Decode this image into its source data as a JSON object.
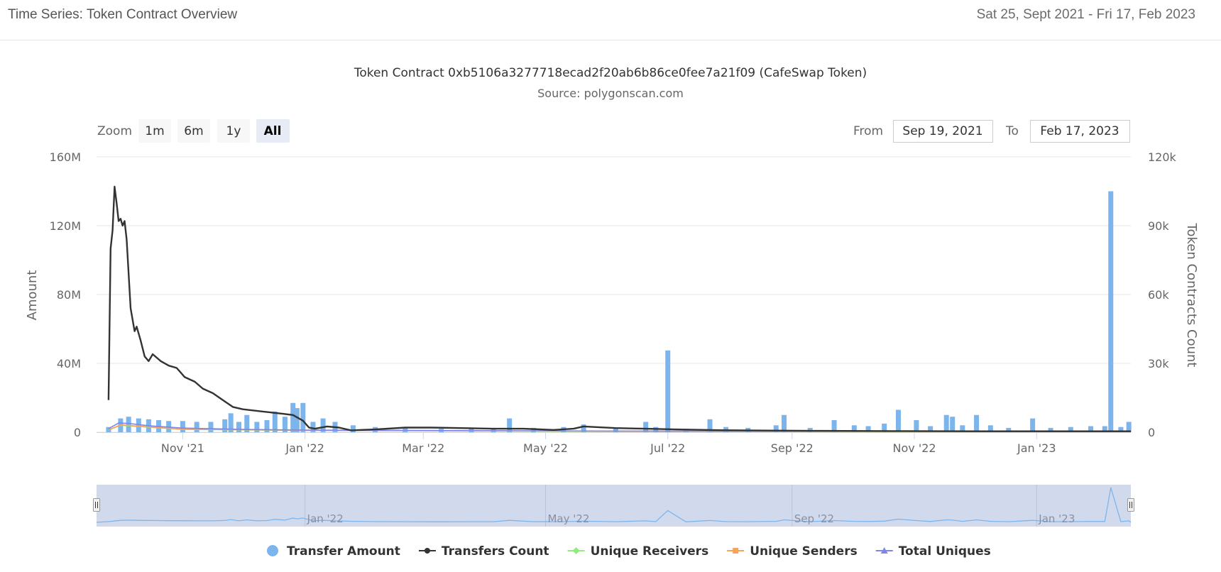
{
  "header": {
    "title": "Time Series: Token Contract Overview",
    "date_range": "Sat 25, Sept 2021 - Fri 17, Feb 2023"
  },
  "chart_data": {
    "type": "bar",
    "title": "Token Contract 0xb5106a3277718ecad2f20ab6b86ce0fee7a21f09 (CafeSwap Token)",
    "subtitle": "Source: polygonscan.com",
    "ylabel": "Amount",
    "y2label": "Token Contracts Count",
    "ylim": [
      0,
      160000000
    ],
    "y2lim": [
      0,
      120000
    ],
    "y_ticks": [
      "0",
      "40M",
      "80M",
      "120M",
      "160M"
    ],
    "y2_ticks": [
      "0",
      "30k",
      "60k",
      "90k",
      "120k"
    ],
    "x_ticks": [
      "Nov '21",
      "Jan '22",
      "Mar '22",
      "May '22",
      "Jul '22",
      "Sep '22",
      "Nov '22",
      "Jan '23"
    ],
    "x_tick_dates": [
      "2021-11-01",
      "2022-01-01",
      "2022-03-01",
      "2022-05-01",
      "2022-07-01",
      "2022-09-01",
      "2022-11-01",
      "2023-01-01"
    ],
    "x_range": [
      "2021-09-19",
      "2023-02-17"
    ],
    "grid": true,
    "legend_position": "bottom",
    "series": [
      {
        "name": "Transfer Amount",
        "type": "bar",
        "axis": "left",
        "color": "#7cb5ec",
        "points": [
          [
            "2021-09-25",
            3000000
          ],
          [
            "2021-10-01",
            8000000
          ],
          [
            "2021-10-05",
            9000000
          ],
          [
            "2021-10-10",
            8000000
          ],
          [
            "2021-10-15",
            7500000
          ],
          [
            "2021-10-20",
            7000000
          ],
          [
            "2021-10-25",
            6500000
          ],
          [
            "2021-11-01",
            6500000
          ],
          [
            "2021-11-08",
            6000000
          ],
          [
            "2021-11-15",
            6000000
          ],
          [
            "2021-11-22",
            7500000
          ],
          [
            "2021-11-25",
            11000000
          ],
          [
            "2021-11-29",
            6000000
          ],
          [
            "2021-12-03",
            10000000
          ],
          [
            "2021-12-08",
            6000000
          ],
          [
            "2021-12-13",
            7000000
          ],
          [
            "2021-12-17",
            12000000
          ],
          [
            "2021-12-22",
            9000000
          ],
          [
            "2021-12-26",
            17000000
          ],
          [
            "2021-12-28",
            14000000
          ],
          [
            "2021-12-31",
            17000000
          ],
          [
            "2022-01-05",
            6000000
          ],
          [
            "2022-01-10",
            8000000
          ],
          [
            "2022-01-16",
            6000000
          ],
          [
            "2022-01-25",
            4000000
          ],
          [
            "2022-02-05",
            3000000
          ],
          [
            "2022-02-20",
            2500000
          ],
          [
            "2022-03-10",
            2000000
          ],
          [
            "2022-03-25",
            2500000
          ],
          [
            "2022-04-05",
            2500000
          ],
          [
            "2022-04-13",
            8000000
          ],
          [
            "2022-04-25",
            2500000
          ],
          [
            "2022-05-10",
            3000000
          ],
          [
            "2022-05-20",
            4500000
          ],
          [
            "2022-06-05",
            2500000
          ],
          [
            "2022-06-20",
            6000000
          ],
          [
            "2022-06-25",
            3000000
          ],
          [
            "2022-07-01",
            47500000
          ],
          [
            "2022-07-10",
            2000000
          ],
          [
            "2022-07-22",
            7500000
          ],
          [
            "2022-07-30",
            3000000
          ],
          [
            "2022-08-10",
            2500000
          ],
          [
            "2022-08-24",
            4000000
          ],
          [
            "2022-08-28",
            10000000
          ],
          [
            "2022-09-10",
            2500000
          ],
          [
            "2022-09-22",
            7000000
          ],
          [
            "2022-10-02",
            4000000
          ],
          [
            "2022-10-09",
            3500000
          ],
          [
            "2022-10-17",
            5000000
          ],
          [
            "2022-10-24",
            13000000
          ],
          [
            "2022-11-02",
            7000000
          ],
          [
            "2022-11-09",
            3500000
          ],
          [
            "2022-11-17",
            10000000
          ],
          [
            "2022-11-20",
            9000000
          ],
          [
            "2022-11-25",
            4000000
          ],
          [
            "2022-12-02",
            10000000
          ],
          [
            "2022-12-09",
            4000000
          ],
          [
            "2022-12-18",
            2500000
          ],
          [
            "2022-12-30",
            8000000
          ],
          [
            "2023-01-08",
            2500000
          ],
          [
            "2023-01-18",
            3000000
          ],
          [
            "2023-01-28",
            3500000
          ],
          [
            "2023-02-04",
            3500000
          ],
          [
            "2023-02-07",
            140000000
          ],
          [
            "2023-02-12",
            3000000
          ],
          [
            "2023-02-16",
            6000000
          ]
        ]
      },
      {
        "name": "Transfers Count",
        "type": "line",
        "axis": "right",
        "color": "#333333",
        "points": [
          [
            "2021-09-25",
            14000
          ],
          [
            "2021-09-26",
            80000
          ],
          [
            "2021-09-27",
            88000
          ],
          [
            "2021-09-28",
            107000
          ],
          [
            "2021-09-29",
            100000
          ],
          [
            "2021-09-30",
            92000
          ],
          [
            "2021-10-01",
            93000
          ],
          [
            "2021-10-02",
            90000
          ],
          [
            "2021-10-03",
            92000
          ],
          [
            "2021-10-04",
            84000
          ],
          [
            "2021-10-06",
            54000
          ],
          [
            "2021-10-08",
            44000
          ],
          [
            "2021-10-09",
            46000
          ],
          [
            "2021-10-11",
            40000
          ],
          [
            "2021-10-13",
            33000
          ],
          [
            "2021-10-15",
            31000
          ],
          [
            "2021-10-17",
            34000
          ],
          [
            "2021-10-21",
            31000
          ],
          [
            "2021-10-25",
            29000
          ],
          [
            "2021-10-29",
            28000
          ],
          [
            "2021-11-02",
            24000
          ],
          [
            "2021-11-07",
            22000
          ],
          [
            "2021-11-11",
            19000
          ],
          [
            "2021-11-16",
            17000
          ],
          [
            "2021-11-21",
            14000
          ],
          [
            "2021-11-26",
            11000
          ],
          [
            "2021-12-01",
            10000
          ],
          [
            "2021-12-06",
            9500
          ],
          [
            "2021-12-11",
            9000
          ],
          [
            "2021-12-16",
            8500
          ],
          [
            "2021-12-21",
            8000
          ],
          [
            "2021-12-26",
            7500
          ],
          [
            "2021-12-31",
            5000
          ],
          [
            "2022-01-03",
            2000
          ],
          [
            "2022-01-06",
            1500
          ],
          [
            "2022-01-12",
            2500
          ],
          [
            "2022-01-18",
            2000
          ],
          [
            "2022-01-24",
            800
          ],
          [
            "2022-02-05",
            1200
          ],
          [
            "2022-02-20",
            2000
          ],
          [
            "2022-03-05",
            2000
          ],
          [
            "2022-03-20",
            1800
          ],
          [
            "2022-04-05",
            1500
          ],
          [
            "2022-04-20",
            1500
          ],
          [
            "2022-05-05",
            1000
          ],
          [
            "2022-05-15",
            1500
          ],
          [
            "2022-05-20",
            2500
          ],
          [
            "2022-06-05",
            1800
          ],
          [
            "2022-06-20",
            1500
          ],
          [
            "2022-07-05",
            1200
          ],
          [
            "2022-07-25",
            900
          ],
          [
            "2022-08-20",
            700
          ],
          [
            "2022-09-15",
            600
          ],
          [
            "2022-10-20",
            500
          ],
          [
            "2022-12-01",
            400
          ],
          [
            "2023-01-10",
            400
          ],
          [
            "2023-02-17",
            400
          ]
        ]
      },
      {
        "name": "Unique Receivers",
        "type": "line",
        "axis": "right",
        "color": "#90ed7d",
        "points": [
          [
            "2021-09-25",
            1000
          ],
          [
            "2021-10-01",
            3000
          ],
          [
            "2021-10-10",
            2500
          ],
          [
            "2021-11-01",
            1200
          ],
          [
            "2022-01-01",
            800
          ],
          [
            "2022-06-01",
            400
          ],
          [
            "2023-02-17",
            200
          ]
        ]
      },
      {
        "name": "Unique Senders",
        "type": "line",
        "axis": "right",
        "color": "#f7a35c",
        "points": [
          [
            "2021-09-25",
            1000
          ],
          [
            "2021-10-01",
            3200
          ],
          [
            "2021-10-10",
            2600
          ],
          [
            "2021-11-01",
            1300
          ],
          [
            "2022-01-01",
            850
          ],
          [
            "2022-06-01",
            450
          ],
          [
            "2023-02-17",
            250
          ]
        ]
      },
      {
        "name": "Total Uniques",
        "type": "line",
        "axis": "right",
        "color": "#8085e9",
        "points": [
          [
            "2021-09-25",
            1500
          ],
          [
            "2021-09-30",
            4000
          ],
          [
            "2021-10-05",
            3800
          ],
          [
            "2021-10-15",
            2800
          ],
          [
            "2021-11-01",
            1800
          ],
          [
            "2021-12-01",
            1200
          ],
          [
            "2022-01-01",
            900
          ],
          [
            "2022-06-01",
            500
          ],
          [
            "2023-02-17",
            300
          ]
        ]
      }
    ]
  },
  "range_selector": {
    "zoom_label": "Zoom",
    "buttons": [
      "1m",
      "6m",
      "1y",
      "All"
    ],
    "selected": "All",
    "from_label": "From",
    "from_value": "Sep 19, 2021",
    "to_label": "To",
    "to_value": "Feb 17, 2023"
  },
  "navigator": {
    "labels": [
      "Jan '22",
      "May '22",
      "Sep '22",
      "Jan '23"
    ],
    "label_dates": [
      "2022-01-01",
      "2022-05-01",
      "2022-09-01",
      "2023-01-01"
    ]
  },
  "legend": [
    {
      "label": "Transfer Amount",
      "color": "#7cb5ec",
      "symbol": "circle"
    },
    {
      "label": "Transfers Count",
      "color": "#333333",
      "symbol": "line-circle"
    },
    {
      "label": "Unique Receivers",
      "color": "#90ed7d",
      "symbol": "line-diamond"
    },
    {
      "label": "Unique Senders",
      "color": "#f7a35c",
      "symbol": "line-square"
    },
    {
      "label": "Total Uniques",
      "color": "#8085e9",
      "symbol": "line-triangle"
    }
  ]
}
